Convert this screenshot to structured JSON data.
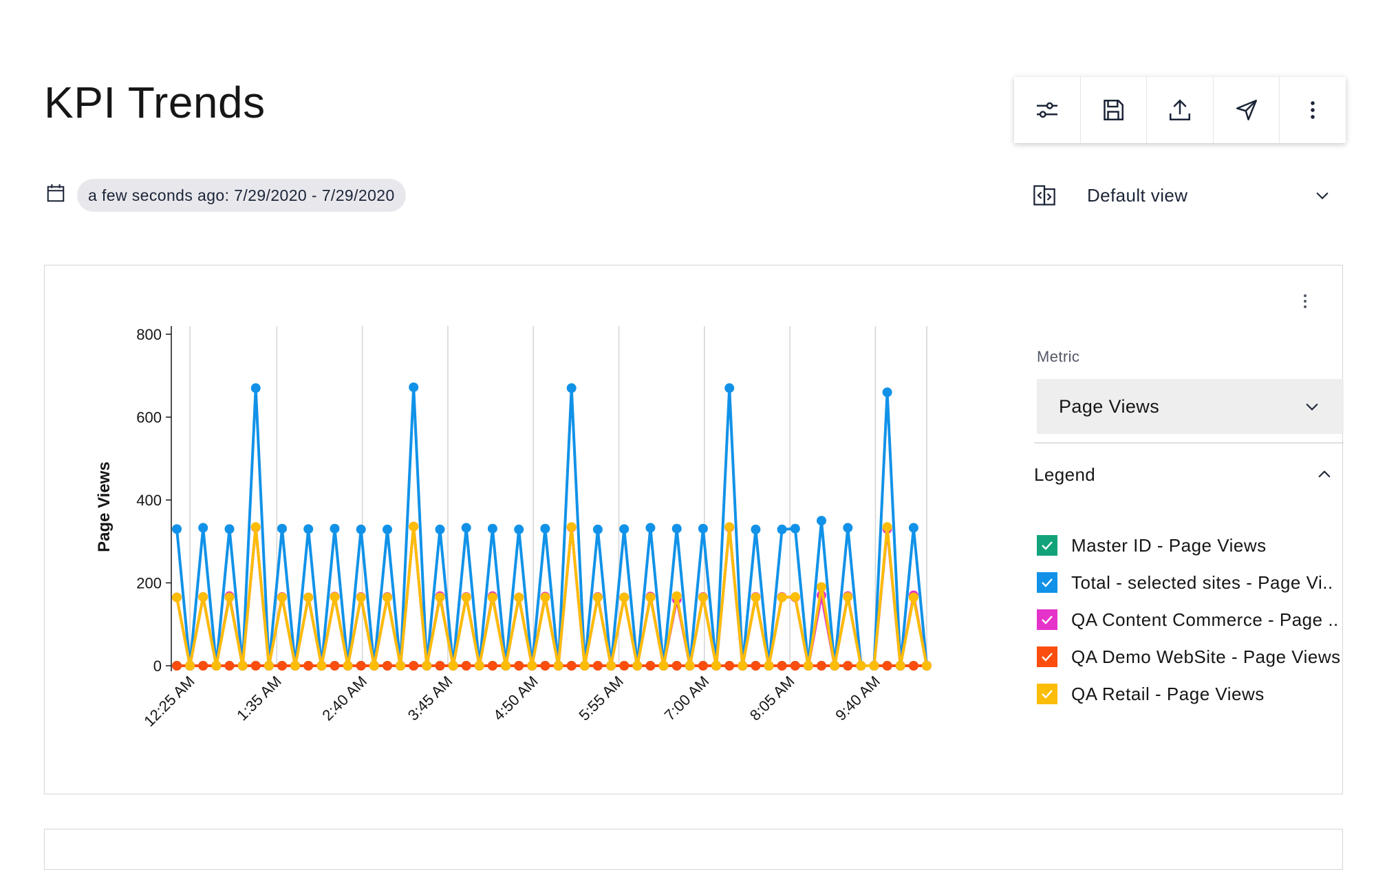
{
  "page": {
    "title": "KPI Trends"
  },
  "toolbar": {
    "buttons": [
      {
        "icon": "sliders-icon"
      },
      {
        "icon": "save-icon"
      },
      {
        "icon": "upload-icon"
      },
      {
        "icon": "send-icon"
      },
      {
        "icon": "overflow-menu-icon"
      }
    ]
  },
  "date_filter": {
    "icon": "calendar-icon",
    "label": "a few seconds ago: 7/29/2020 - 7/29/2020"
  },
  "view_select": {
    "icon": "compare-icon",
    "label": "Default view"
  },
  "metric": {
    "label": "Metric",
    "value": "Page Views"
  },
  "legend": {
    "title": "Legend",
    "items": [
      {
        "label": "Master ID - Page Views",
        "color": "#12a37a",
        "checked": true
      },
      {
        "label": "Total - selected sites - Page Vi..",
        "color": "#1192e8",
        "checked": true
      },
      {
        "label": "QA Content Commerce - Page ..",
        "color": "#e433c9",
        "checked": true
      },
      {
        "label": "QA Demo WebSite - Page Views",
        "color": "#fa4d0e",
        "checked": true
      },
      {
        "label": "QA Retail - Page Views",
        "color": "#fbbd08",
        "checked": true
      }
    ]
  },
  "chart_data": {
    "type": "line",
    "ylabel": "Page Views",
    "ylim": [
      0,
      800
    ],
    "y_ticks": [
      0,
      200,
      400,
      600,
      800
    ],
    "x_tick_labels": [
      "12:25 AM",
      "1:35 AM",
      "2:40 AM",
      "3:45 AM",
      "4:50 AM",
      "5:55 AM",
      "7:00 AM",
      "8:05 AM",
      "9:40 AM"
    ],
    "grid": "vertical",
    "legend_position": "right",
    "series": [
      {
        "name": "Master ID - Page Views",
        "color": "#12a37a",
        "values": [
          0,
          0,
          0,
          0,
          0,
          0,
          0,
          0,
          0,
          0,
          0,
          0,
          0,
          0,
          0,
          0,
          0,
          0,
          0,
          0,
          0,
          0,
          0,
          0,
          0,
          0,
          0,
          0,
          0,
          0,
          0,
          0,
          0,
          0,
          0,
          0,
          0,
          0,
          0,
          0,
          0,
          0,
          0,
          0,
          0,
          0,
          0,
          0,
          0,
          0,
          0,
          0,
          0,
          0,
          0,
          0,
          0,
          0
        ]
      },
      {
        "name": "Total - selected sites - Page Vi..",
        "color": "#1192e8",
        "values": [
          330,
          0,
          333,
          0,
          330,
          0,
          670,
          0,
          331,
          0,
          330,
          0,
          331,
          0,
          329,
          0,
          329,
          0,
          672,
          0,
          329,
          0,
          333,
          0,
          331,
          0,
          329,
          0,
          331,
          0,
          670,
          0,
          329,
          0,
          330,
          0,
          333,
          0,
          331,
          0,
          331,
          0,
          670,
          0,
          329,
          0,
          329,
          331,
          0,
          350,
          0,
          333,
          0,
          0,
          660,
          0,
          333,
          0
        ]
      },
      {
        "name": "QA Content Commerce - Page ..",
        "color": "#e433c9",
        "values": [
          165,
          0,
          166,
          0,
          168,
          0,
          334,
          0,
          166,
          0,
          165,
          0,
          167,
          0,
          166,
          0,
          166,
          0,
          336,
          0,
          168,
          0,
          166,
          0,
          168,
          0,
          165,
          0,
          167,
          0,
          334,
          0,
          166,
          0,
          165,
          0,
          167,
          0,
          160,
          0,
          166,
          0,
          334,
          0,
          166,
          0,
          166,
          165,
          0,
          170,
          0,
          168,
          0,
          0,
          330,
          0,
          170,
          0
        ]
      },
      {
        "name": "QA Demo WebSite - Page Views",
        "color": "#fa4d0e",
        "values": [
          0,
          0,
          0,
          0,
          0,
          0,
          0,
          0,
          0,
          0,
          0,
          0,
          0,
          0,
          0,
          0,
          0,
          0,
          0,
          0,
          0,
          0,
          0,
          0,
          0,
          0,
          0,
          0,
          0,
          0,
          0,
          0,
          0,
          0,
          0,
          0,
          0,
          0,
          0,
          0,
          0,
          0,
          0,
          0,
          0,
          0,
          0,
          0,
          0,
          0,
          0,
          0,
          0,
          0,
          0,
          0,
          0,
          0
        ]
      },
      {
        "name": "QA Retail - Page Views",
        "color": "#fbbd08",
        "values": [
          165,
          0,
          166,
          0,
          165,
          0,
          335,
          0,
          165,
          0,
          165,
          0,
          166,
          0,
          165,
          0,
          165,
          0,
          336,
          0,
          165,
          0,
          165,
          0,
          165,
          0,
          165,
          0,
          165,
          0,
          335,
          0,
          165,
          0,
          165,
          0,
          165,
          0,
          168,
          0,
          165,
          0,
          335,
          0,
          165,
          0,
          165,
          166,
          0,
          190,
          0,
          166,
          0,
          0,
          335,
          0,
          165,
          0
        ]
      }
    ]
  }
}
